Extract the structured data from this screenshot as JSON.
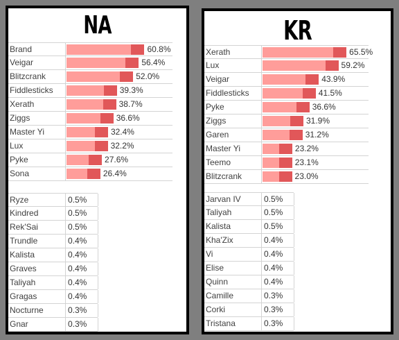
{
  "background": "#7f7f7f",
  "colors": {
    "bar_light": "#ff9d9a",
    "bar_dark": "#e15759"
  },
  "chart_data": [
    {
      "type": "bar",
      "title": "NA",
      "categories": [
        "Brand",
        "Veigar",
        "Blitzcrank",
        "Fiddlesticks",
        "Xerath",
        "Ziggs",
        "Master Yi",
        "Lux",
        "Pyke",
        "Sona"
      ],
      "values": [
        60.8,
        56.4,
        52.0,
        39.3,
        38.7,
        36.6,
        32.4,
        32.2,
        27.6,
        26.4
      ],
      "labels": [
        "60.8%",
        "56.4%",
        "52.0%",
        "39.3%",
        "38.7%",
        "36.6%",
        "32.4%",
        "32.2%",
        "27.6%",
        "26.4%"
      ],
      "ylim": [
        0,
        70
      ],
      "low_table": {
        "names": [
          "Ryze",
          "Kindred",
          "Rek'Sai",
          "Trundle",
          "Kalista",
          "Graves",
          "Taliyah",
          "Gragas",
          "Nocturne",
          "Gnar"
        ],
        "values": [
          "0.5%",
          "0.5%",
          "0.5%",
          "0.4%",
          "0.4%",
          "0.4%",
          "0.4%",
          "0.4%",
          "0.3%",
          "0.3%"
        ]
      }
    },
    {
      "type": "bar",
      "title": "KR",
      "categories": [
        "Xerath",
        "Lux",
        "Veigar",
        "Fiddlesticks",
        "Pyke",
        "Ziggs",
        "Garen",
        "Master Yi",
        "Teemo",
        "Blitzcrank"
      ],
      "values": [
        65.5,
        59.2,
        43.9,
        41.5,
        36.6,
        31.9,
        31.2,
        23.2,
        23.1,
        23.0
      ],
      "labels": [
        "65.5%",
        "59.2%",
        "43.9%",
        "41.5%",
        "36.6%",
        "31.9%",
        "31.2%",
        "23.2%",
        "23.1%",
        "23.0%"
      ],
      "ylim": [
        0,
        70
      ],
      "low_table": {
        "names": [
          "Jarvan IV",
          "Taliyah",
          "Kalista",
          "Kha'Zix",
          "Vi",
          "Elise",
          "Quinn",
          "Camille",
          "Corki",
          "Tristana"
        ],
        "values": [
          "0.5%",
          "0.5%",
          "0.5%",
          "0.4%",
          "0.4%",
          "0.4%",
          "0.4%",
          "0.3%",
          "0.3%",
          "0.3%"
        ]
      }
    }
  ]
}
